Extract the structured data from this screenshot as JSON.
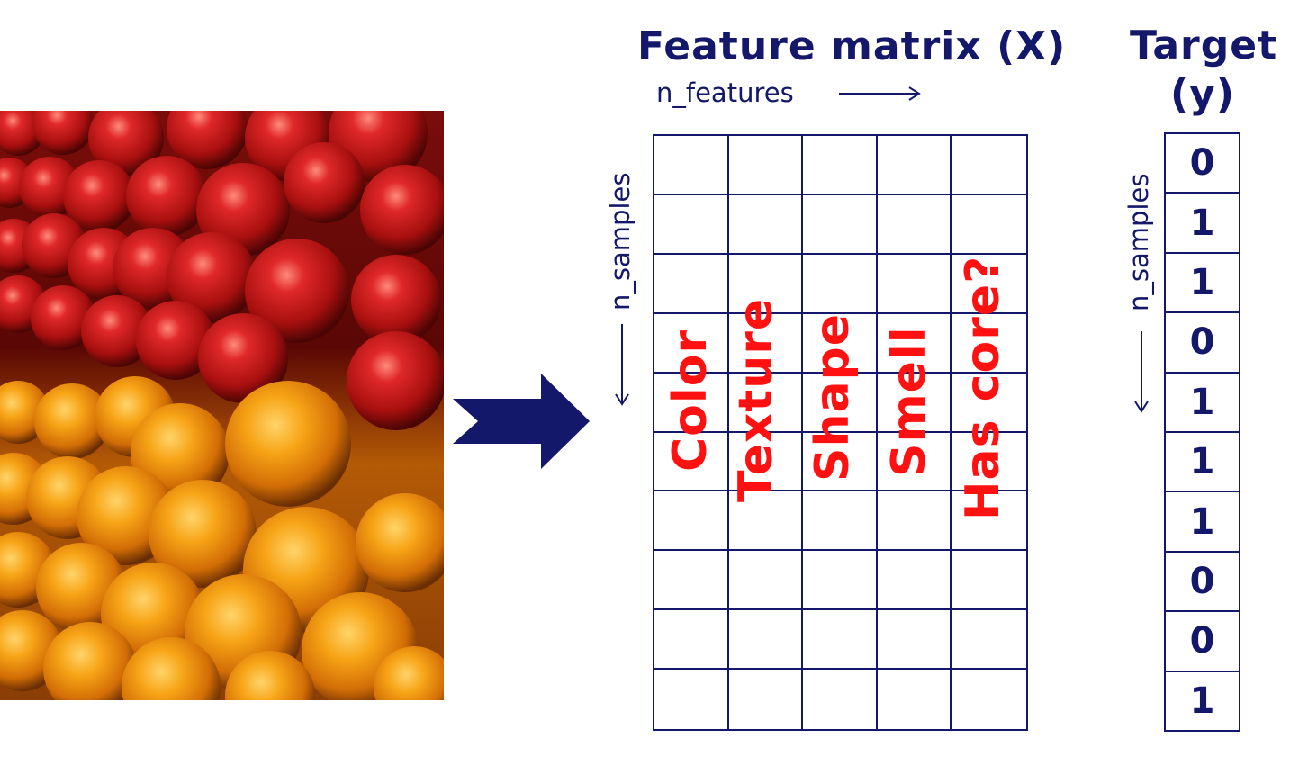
{
  "feature_matrix": {
    "title": "Feature matrix (X)",
    "columns_label": "n_features",
    "rows_label": "n_samples",
    "features": [
      "Color",
      "Texture",
      "Shape",
      "Smell",
      "Has core?"
    ],
    "n_rows": 10,
    "n_cols": 5
  },
  "target": {
    "title_line1": "Target",
    "title_line2": "(y)",
    "rows_label": "n_samples",
    "values": [
      "0",
      "1",
      "1",
      "0",
      "1",
      "1",
      "1",
      "0",
      "0",
      "1"
    ]
  },
  "colors": {
    "navy": "#14186b",
    "feature_text": "#ff1111",
    "apple_red": "#c8161a",
    "orange": "#f29a0e"
  }
}
